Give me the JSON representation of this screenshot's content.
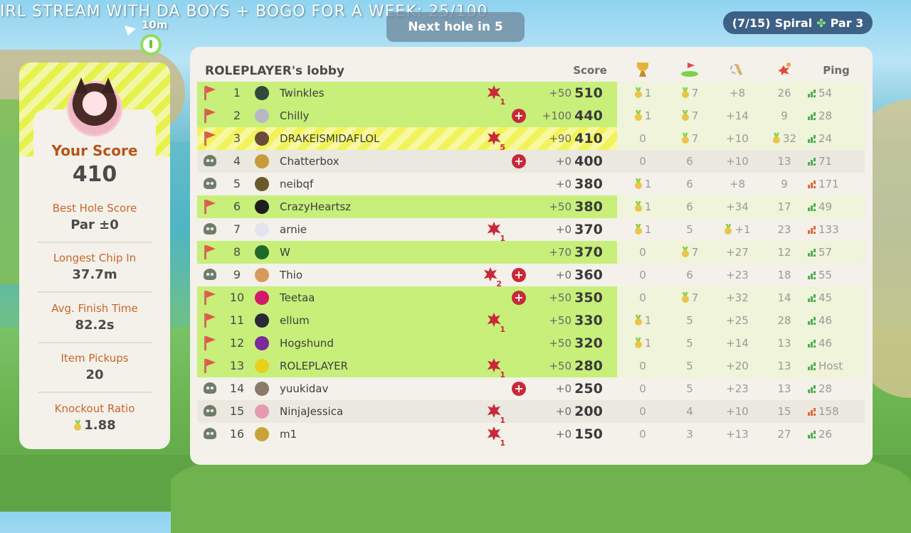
{
  "ticker": "IRL STREAM WITH DA BOYS + BOGO FOR A WEEK: 25/100",
  "distance": "10m",
  "next_hole": "Next hole in 5",
  "hole_info": {
    "progress": "(7/15)",
    "course": "Spiral",
    "par": "Par 3"
  },
  "player_card": {
    "your_score_label": "Your Score",
    "your_score": "410",
    "stats": [
      {
        "label": "Best Hole Score",
        "value": "Par ±0"
      },
      {
        "label": "Longest Chip In",
        "value": "37.7m"
      },
      {
        "label": "Avg. Finish Time",
        "value": "82.2s"
      },
      {
        "label": "Item Pickups",
        "value": "20"
      },
      {
        "label": "Knockout Ratio",
        "value": "1.88"
      }
    ]
  },
  "board": {
    "title": "ROLEPLAYER's lobby",
    "headers": {
      "score": "Score",
      "ping": "Ping"
    },
    "rows": [
      {
        "rank": "1",
        "name": "Twinkles",
        "status": "flag",
        "ko": "1",
        "shield": false,
        "delta": "+50",
        "score": "510",
        "c1": "1",
        "c1m": true,
        "c2": "7",
        "c2m": true,
        "c3": "+8",
        "c3m": false,
        "c4": "26",
        "c4m": false,
        "ping": "54",
        "ping_color": "#4caf50",
        "avatar": "#2f4a3a",
        "style": "green-full"
      },
      {
        "rank": "2",
        "name": "Chilly",
        "status": "flag",
        "ko": "",
        "shield": true,
        "delta": "+100",
        "score": "440",
        "c1": "1",
        "c1m": true,
        "c2": "7",
        "c2m": true,
        "c3": "+14",
        "c3m": false,
        "c4": "9",
        "c4m": false,
        "ping": "28",
        "ping_color": "#4caf50",
        "avatar": "#b9b6c6",
        "style": "green-alt"
      },
      {
        "rank": "3",
        "name": "DRAKEISMIDAFLOL",
        "status": "flag",
        "ko": "5",
        "shield": false,
        "delta": "+90",
        "score": "410",
        "c1": "0",
        "c1m": false,
        "c2": "7",
        "c2m": true,
        "c3": "+10",
        "c3m": false,
        "c4": "32",
        "c4m": true,
        "ping": "24",
        "ping_color": "#4caf50",
        "avatar": "#6a4a3a",
        "style": "yellow"
      },
      {
        "rank": "4",
        "name": "Chatterbox",
        "status": "skull",
        "ko": "",
        "shield": true,
        "delta": "+0",
        "score": "400",
        "c1": "0",
        "c1m": false,
        "c2": "6",
        "c2m": false,
        "c3": "+10",
        "c3m": false,
        "c4": "13",
        "c4m": false,
        "ping": "71",
        "ping_color": "#4caf50",
        "avatar": "#c79a3a",
        "style": "plain-shade"
      },
      {
        "rank": "5",
        "name": "neibqf",
        "status": "skull",
        "ko": "",
        "shield": false,
        "delta": "+0",
        "score": "380",
        "c1": "1",
        "c1m": true,
        "c2": "6",
        "c2m": false,
        "c3": "+8",
        "c3m": false,
        "c4": "9",
        "c4m": false,
        "ping": "171",
        "ping_color": "#e0673a",
        "avatar": "#6a5a2a",
        "style": "plain"
      },
      {
        "rank": "6",
        "name": "CrazyHeartsz",
        "status": "flag",
        "ko": "",
        "shield": false,
        "delta": "+50",
        "score": "380",
        "c1": "1",
        "c1m": true,
        "c2": "6",
        "c2m": false,
        "c3": "+34",
        "c3m": false,
        "c4": "17",
        "c4m": false,
        "ping": "49",
        "ping_color": "#4caf50",
        "avatar": "#1e1e1e",
        "style": "green-full"
      },
      {
        "rank": "7",
        "name": "arnie",
        "status": "skull",
        "ko": "1",
        "shield": false,
        "delta": "+0",
        "score": "370",
        "c1": "1",
        "c1m": true,
        "c2": "5",
        "c2m": false,
        "c3": "+1",
        "c3m": true,
        "c4": "23",
        "c4m": false,
        "ping": "133",
        "ping_color": "#e0673a",
        "avatar": "#e4e4ee",
        "style": "plain"
      },
      {
        "rank": "8",
        "name": "W",
        "status": "flag",
        "ko": "",
        "shield": false,
        "delta": "+70",
        "score": "370",
        "c1": "0",
        "c1m": false,
        "c2": "7",
        "c2m": true,
        "c3": "+27",
        "c3m": false,
        "c4": "12",
        "c4m": false,
        "ping": "57",
        "ping_color": "#4caf50",
        "avatar": "#1f6a2a",
        "style": "green-full"
      },
      {
        "rank": "9",
        "name": "Thio",
        "status": "skull",
        "ko": "2",
        "shield": true,
        "delta": "+0",
        "score": "360",
        "c1": "0",
        "c1m": false,
        "c2": "6",
        "c2m": false,
        "c3": "+23",
        "c3m": false,
        "c4": "18",
        "c4m": false,
        "ping": "55",
        "ping_color": "#4caf50",
        "avatar": "#d89a5a",
        "style": "plain"
      },
      {
        "rank": "10",
        "name": "Teetaa",
        "status": "flag",
        "ko": "",
        "shield": true,
        "delta": "+50",
        "score": "350",
        "c1": "0",
        "c1m": false,
        "c2": "7",
        "c2m": true,
        "c3": "+32",
        "c3m": false,
        "c4": "14",
        "c4m": false,
        "ping": "45",
        "ping_color": "#4caf50",
        "avatar": "#d21a6a",
        "style": "green-full"
      },
      {
        "rank": "11",
        "name": "ellum",
        "status": "flag",
        "ko": "1",
        "shield": false,
        "delta": "+50",
        "score": "330",
        "c1": "1",
        "c1m": true,
        "c2": "5",
        "c2m": false,
        "c3": "+25",
        "c3m": false,
        "c4": "28",
        "c4m": false,
        "ping": "46",
        "ping_color": "#4caf50",
        "avatar": "#2a2a3a",
        "style": "green-full"
      },
      {
        "rank": "12",
        "name": "Hogshund",
        "status": "flag",
        "ko": "",
        "shield": false,
        "delta": "+50",
        "score": "320",
        "c1": "1",
        "c1m": true,
        "c2": "5",
        "c2m": false,
        "c3": "+14",
        "c3m": false,
        "c4": "13",
        "c4m": false,
        "ping": "46",
        "ping_color": "#4caf50",
        "avatar": "#7a2a9a",
        "style": "green-full"
      },
      {
        "rank": "13",
        "name": "ROLEPLAYER",
        "status": "flag",
        "ko": "1",
        "shield": false,
        "delta": "+50",
        "score": "280",
        "c1": "0",
        "c1m": false,
        "c2": "5",
        "c2m": false,
        "c3": "+20",
        "c3m": false,
        "c4": "13",
        "c4m": false,
        "ping": "Host",
        "ping_color": "#4caf50",
        "avatar": "#e6d21a",
        "style": "green-full"
      },
      {
        "rank": "14",
        "name": "yuukidav",
        "status": "skull",
        "ko": "",
        "shield": true,
        "delta": "+0",
        "score": "250",
        "c1": "0",
        "c1m": false,
        "c2": "5",
        "c2m": false,
        "c3": "+23",
        "c3m": false,
        "c4": "13",
        "c4m": false,
        "ping": "28",
        "ping_color": "#4caf50",
        "avatar": "#8a7a6a",
        "style": "plain"
      },
      {
        "rank": "15",
        "name": "NinjaJessica",
        "status": "skull",
        "ko": "1",
        "shield": false,
        "delta": "+0",
        "score": "200",
        "c1": "0",
        "c1m": false,
        "c2": "4",
        "c2m": false,
        "c3": "+10",
        "c3m": false,
        "c4": "15",
        "c4m": false,
        "ping": "158",
        "ping_color": "#e0673a",
        "avatar": "#e69ab0",
        "style": "plain-shade"
      },
      {
        "rank": "16",
        "name": "m1",
        "status": "skull",
        "ko": "1",
        "shield": false,
        "delta": "+0",
        "score": "150",
        "c1": "0",
        "c1m": false,
        "c2": "3",
        "c2m": false,
        "c3": "+13",
        "c3m": false,
        "c4": "27",
        "c4m": false,
        "ping": "26",
        "ping_color": "#4caf50",
        "avatar": "#c9a23a",
        "style": "plain"
      }
    ]
  }
}
